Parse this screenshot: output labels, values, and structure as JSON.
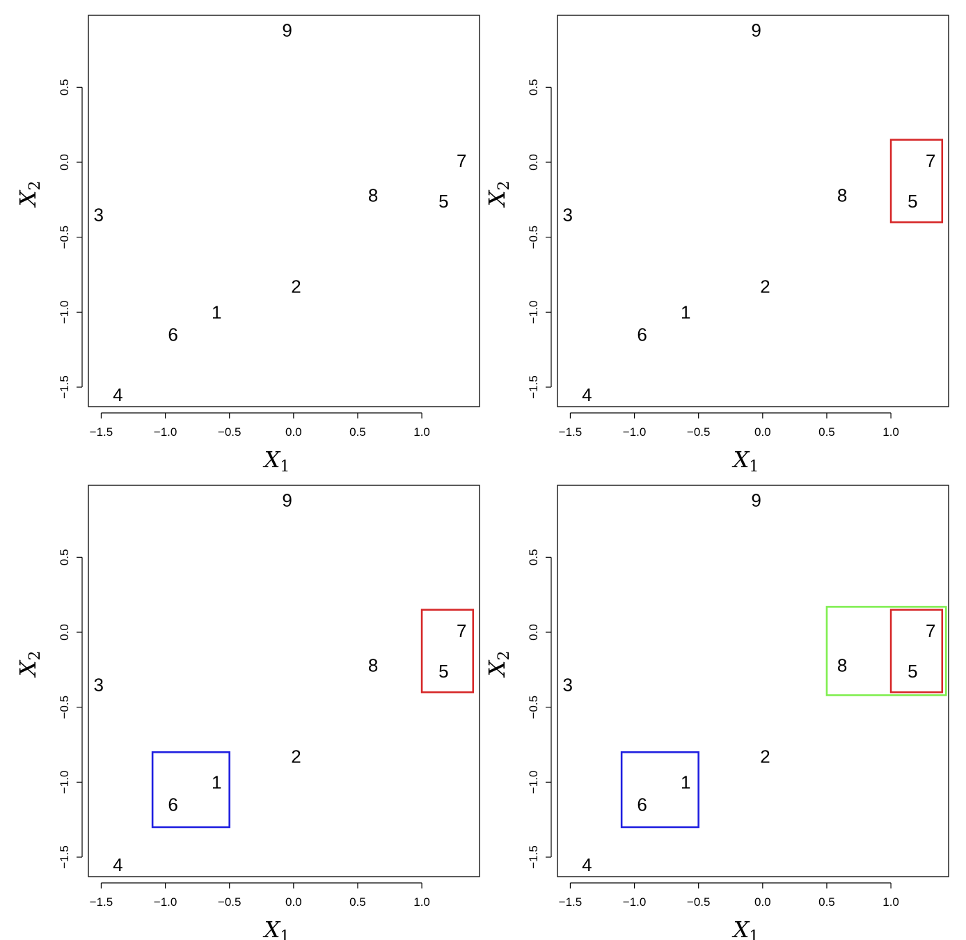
{
  "chart_data": [
    {
      "type": "scatter",
      "xlabel": "X",
      "xlabel_sub": "1",
      "ylabel": "X",
      "ylabel_sub": "2",
      "xlim": [
        -1.6,
        1.45
      ],
      "ylim": [
        -1.63,
        0.98
      ],
      "xticks": [
        -1.5,
        -1.0,
        -0.5,
        0.0,
        0.5,
        1.0
      ],
      "xtick_labels": [
        "−1.5",
        "−1.0",
        "−0.5",
        "0.0",
        "0.5",
        "1.0"
      ],
      "yticks": [
        -1.5,
        -1.0,
        -0.5,
        0.0,
        0.5
      ],
      "ytick_labels": [
        "−1.5",
        "−1.0",
        "−0.5",
        "0.0",
        "0.5"
      ],
      "points": [
        {
          "label": "1",
          "x": -0.6,
          "y": -1.0
        },
        {
          "label": "2",
          "x": 0.02,
          "y": -0.83
        },
        {
          "label": "3",
          "x": -1.52,
          "y": -0.35
        },
        {
          "label": "4",
          "x": -1.37,
          "y": -1.55
        },
        {
          "label": "5",
          "x": 1.17,
          "y": -0.26
        },
        {
          "label": "6",
          "x": -0.94,
          "y": -1.15
        },
        {
          "label": "7",
          "x": 1.31,
          "y": 0.01
        },
        {
          "label": "8",
          "x": 0.62,
          "y": -0.22
        },
        {
          "label": "9",
          "x": -0.05,
          "y": 0.88
        }
      ],
      "rectangles": []
    },
    {
      "type": "scatter",
      "xlabel": "X",
      "xlabel_sub": "1",
      "ylabel": "X",
      "ylabel_sub": "2",
      "xlim": [
        -1.6,
        1.45
      ],
      "ylim": [
        -1.63,
        0.98
      ],
      "xticks": [
        -1.5,
        -1.0,
        -0.5,
        0.0,
        0.5,
        1.0
      ],
      "xtick_labels": [
        "−1.5",
        "−1.0",
        "−0.5",
        "0.0",
        "0.5",
        "1.0"
      ],
      "yticks": [
        -1.5,
        -1.0,
        -0.5,
        0.0,
        0.5
      ],
      "ytick_labels": [
        "−1.5",
        "−1.0",
        "−0.5",
        "0.0",
        "0.5"
      ],
      "points": [
        {
          "label": "1",
          "x": -0.6,
          "y": -1.0
        },
        {
          "label": "2",
          "x": 0.02,
          "y": -0.83
        },
        {
          "label": "3",
          "x": -1.52,
          "y": -0.35
        },
        {
          "label": "4",
          "x": -1.37,
          "y": -1.55
        },
        {
          "label": "5",
          "x": 1.17,
          "y": -0.26
        },
        {
          "label": "6",
          "x": -0.94,
          "y": -1.15
        },
        {
          "label": "7",
          "x": 1.31,
          "y": 0.01
        },
        {
          "label": "8",
          "x": 0.62,
          "y": -0.22
        },
        {
          "label": "9",
          "x": -0.05,
          "y": 0.88
        }
      ],
      "rectangles": [
        {
          "color": "#d62728",
          "x0": 1.0,
          "x1": 1.4,
          "y0": -0.4,
          "y1": 0.15
        }
      ]
    },
    {
      "type": "scatter",
      "xlabel": "X",
      "xlabel_sub": "1",
      "ylabel": "X",
      "ylabel_sub": "2",
      "xlim": [
        -1.6,
        1.45
      ],
      "ylim": [
        -1.63,
        0.98
      ],
      "xticks": [
        -1.5,
        -1.0,
        -0.5,
        0.0,
        0.5,
        1.0
      ],
      "xtick_labels": [
        "−1.5",
        "−1.0",
        "−0.5",
        "0.0",
        "0.5",
        "1.0"
      ],
      "yticks": [
        -1.5,
        -1.0,
        -0.5,
        0.0,
        0.5
      ],
      "ytick_labels": [
        "−1.5",
        "−1.0",
        "−0.5",
        "0.0",
        "0.5"
      ],
      "points": [
        {
          "label": "1",
          "x": -0.6,
          "y": -1.0
        },
        {
          "label": "2",
          "x": 0.02,
          "y": -0.83
        },
        {
          "label": "3",
          "x": -1.52,
          "y": -0.35
        },
        {
          "label": "4",
          "x": -1.37,
          "y": -1.55
        },
        {
          "label": "5",
          "x": 1.17,
          "y": -0.26
        },
        {
          "label": "6",
          "x": -0.94,
          "y": -1.15
        },
        {
          "label": "7",
          "x": 1.31,
          "y": 0.01
        },
        {
          "label": "8",
          "x": 0.62,
          "y": -0.22
        },
        {
          "label": "9",
          "x": -0.05,
          "y": 0.88
        }
      ],
      "rectangles": [
        {
          "color": "#d62728",
          "x0": 1.0,
          "x1": 1.4,
          "y0": -0.4,
          "y1": 0.15
        },
        {
          "color": "#1f1fe0",
          "x0": -1.1,
          "x1": -0.5,
          "y0": -1.3,
          "y1": -0.8
        }
      ]
    },
    {
      "type": "scatter",
      "xlabel": "X",
      "xlabel_sub": "1",
      "ylabel": "X",
      "ylabel_sub": "2",
      "xlim": [
        -1.6,
        1.45
      ],
      "ylim": [
        -1.63,
        0.98
      ],
      "xticks": [
        -1.5,
        -1.0,
        -0.5,
        0.0,
        0.5,
        1.0
      ],
      "xtick_labels": [
        "−1.5",
        "−1.0",
        "−0.5",
        "0.0",
        "0.5",
        "1.0"
      ],
      "yticks": [
        -1.5,
        -1.0,
        -0.5,
        0.0,
        0.5
      ],
      "ytick_labels": [
        "−1.5",
        "−1.0",
        "−0.5",
        "0.0",
        "0.5"
      ],
      "points": [
        {
          "label": "1",
          "x": -0.6,
          "y": -1.0
        },
        {
          "label": "2",
          "x": 0.02,
          "y": -0.83
        },
        {
          "label": "3",
          "x": -1.52,
          "y": -0.35
        },
        {
          "label": "4",
          "x": -1.37,
          "y": -1.55
        },
        {
          "label": "5",
          "x": 1.17,
          "y": -0.26
        },
        {
          "label": "6",
          "x": -0.94,
          "y": -1.15
        },
        {
          "label": "7",
          "x": 1.31,
          "y": 0.01
        },
        {
          "label": "8",
          "x": 0.62,
          "y": -0.22
        },
        {
          "label": "9",
          "x": -0.05,
          "y": 0.88
        }
      ],
      "rectangles": [
        {
          "color": "#80ee50",
          "x0": 0.5,
          "x1": 1.43,
          "y0": -0.42,
          "y1": 0.17
        },
        {
          "color": "#d62728",
          "x0": 1.0,
          "x1": 1.4,
          "y0": -0.4,
          "y1": 0.15
        },
        {
          "color": "#1f1fe0",
          "x0": -1.1,
          "x1": -0.5,
          "y0": -1.3,
          "y1": -0.8
        }
      ]
    }
  ]
}
